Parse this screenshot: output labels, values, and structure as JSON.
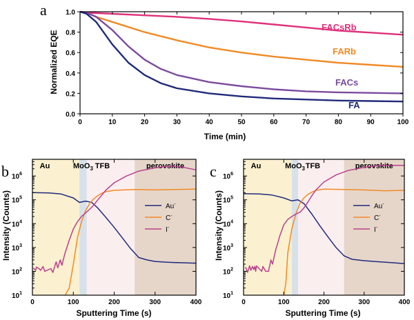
{
  "chart_data": [
    {
      "panel": "a",
      "type": "line",
      "xlabel": "Time (min)",
      "ylabel": "Normalized EQE",
      "xlim": [
        0,
        100
      ],
      "ylim": [
        0.0,
        1.0
      ],
      "xticks": [
        "0",
        "10",
        "20",
        "30",
        "40",
        "50",
        "60",
        "70",
        "80",
        "90",
        "100"
      ],
      "yticks": [
        "0.0",
        "0.2",
        "0.4",
        "0.6",
        "0.8",
        "1.0"
      ],
      "series": [
        {
          "name": "FACsRb",
          "color": "#e0307a",
          "x": [
            0,
            3,
            10,
            20,
            30,
            40,
            50,
            60,
            70,
            80,
            90,
            100
          ],
          "y": [
            1.0,
            0.99,
            0.98,
            0.965,
            0.95,
            0.93,
            0.905,
            0.875,
            0.845,
            0.815,
            0.795,
            0.775
          ]
        },
        {
          "name": "FARb",
          "color": "#f08a24",
          "x": [
            0,
            2,
            5,
            10,
            15,
            20,
            30,
            40,
            50,
            60,
            70,
            80,
            90,
            100
          ],
          "y": [
            1.0,
            0.99,
            0.95,
            0.9,
            0.85,
            0.8,
            0.72,
            0.65,
            0.6,
            0.56,
            0.53,
            0.5,
            0.48,
            0.46
          ]
        },
        {
          "name": "FACs",
          "color": "#7b4b9e",
          "x": [
            0,
            2,
            5,
            10,
            15,
            20,
            25,
            30,
            40,
            50,
            60,
            70,
            80,
            90,
            100
          ],
          "y": [
            1.0,
            0.99,
            0.95,
            0.82,
            0.66,
            0.53,
            0.44,
            0.38,
            0.31,
            0.27,
            0.24,
            0.22,
            0.21,
            0.205,
            0.2
          ]
        },
        {
          "name": "FA",
          "color": "#1f2a7a",
          "x": [
            0,
            2,
            5,
            10,
            15,
            20,
            25,
            30,
            40,
            50,
            60,
            70,
            80,
            90,
            100
          ],
          "y": [
            1.0,
            0.98,
            0.9,
            0.68,
            0.5,
            0.38,
            0.3,
            0.25,
            0.2,
            0.17,
            0.15,
            0.14,
            0.13,
            0.125,
            0.12
          ]
        }
      ]
    },
    {
      "panel": "b",
      "type": "line",
      "yscale": "log",
      "xlabel": "Sputtering Time (s)",
      "ylabel": "Intensity (Counts)",
      "xlim": [
        0,
        400
      ],
      "ylim": [
        10,
        5000000
      ],
      "xticks": [
        "0",
        "100",
        "200",
        "300",
        "400"
      ],
      "regions": [
        {
          "label": "Au",
          "from": 0,
          "to": 115,
          "color": "#fbf0cf"
        },
        {
          "label": "MoO3",
          "from": 115,
          "to": 133,
          "color": "#d7e1ea"
        },
        {
          "label": "TFB",
          "from": 133,
          "to": 250,
          "color": "#fbeeee"
        },
        {
          "label": "perovskite",
          "from": 250,
          "to": 400,
          "color": "#e6d6ca"
        }
      ],
      "legend": [
        "Au-",
        "C-",
        "I-"
      ],
      "series": [
        {
          "name": "Au-",
          "color": "#1f2a7a",
          "x": [
            0,
            40,
            70,
            100,
            115,
            130,
            145,
            160,
            180,
            200,
            220,
            240,
            260,
            280,
            300,
            330,
            360,
            400
          ],
          "y": [
            200000,
            195000,
            175000,
            120000,
            78000,
            88000,
            78000,
            45000,
            18000,
            7000,
            2500,
            900,
            380,
            300,
            260,
            240,
            230,
            220
          ]
        },
        {
          "name": "C-",
          "color": "#f08a24",
          "x": [
            80,
            90,
            100,
            110,
            120,
            130,
            140,
            150,
            160,
            170,
            180,
            200,
            250,
            300,
            350,
            400
          ],
          "y": [
            10,
            20,
            200,
            2500,
            12000,
            35000,
            70000,
            110000,
            150000,
            190000,
            220000,
            250000,
            270000,
            260000,
            270000,
            280000
          ]
        },
        {
          "name": "I-",
          "color": "#b8408f",
          "x": [
            2,
            8,
            10,
            16,
            20,
            26,
            30,
            45,
            50,
            58,
            62,
            68,
            72,
            80,
            90,
            100,
            110,
            120,
            130,
            140,
            150,
            160,
            170,
            180,
            200,
            230,
            260,
            300,
            340,
            370,
            400
          ],
          "y": [
            140,
            110,
            150,
            130,
            110,
            160,
            100,
            130,
            90,
            250,
            140,
            300,
            180,
            600,
            2000,
            6000,
            12000,
            20000,
            28000,
            40000,
            60000,
            100000,
            160000,
            260000,
            520000,
            1000000,
            1600000,
            2200000,
            2600000,
            2300000,
            1800000
          ]
        }
      ]
    },
    {
      "panel": "c",
      "type": "line",
      "yscale": "log",
      "xlabel": "Sputtering Time (s)",
      "ylabel": "Intensity (Counts)",
      "xlim": [
        0,
        400
      ],
      "ylim": [
        10,
        5000000
      ],
      "xticks": [
        "0",
        "100",
        "200",
        "300",
        "400"
      ],
      "regions": [
        {
          "label": "Au",
          "from": 0,
          "to": 120,
          "color": "#fbf0cf"
        },
        {
          "label": "MoO3",
          "from": 120,
          "to": 136,
          "color": "#d7e1ea"
        },
        {
          "label": "TFB",
          "from": 136,
          "to": 250,
          "color": "#fbeeee"
        },
        {
          "label": "perovskite",
          "from": 250,
          "to": 400,
          "color": "#e6d6ca"
        }
      ],
      "legend": [
        "Au-",
        "C-",
        "I-"
      ],
      "series": [
        {
          "name": "Au-",
          "color": "#1f2a7a",
          "x": [
            0,
            40,
            70,
            100,
            120,
            135,
            150,
            170,
            190,
            210,
            230,
            250,
            270,
            300,
            340,
            370,
            400
          ],
          "y": [
            180000,
            175000,
            160000,
            120000,
            90000,
            100000,
            70000,
            25000,
            8000,
            2800,
            1000,
            450,
            320,
            280,
            250,
            230,
            210
          ]
        },
        {
          "name": "C-",
          "color": "#f08a24",
          "x": [
            100,
            105,
            110,
            120,
            130,
            140,
            150,
            160,
            170,
            180,
            200,
            250,
            300,
            350,
            400
          ],
          "y": [
            10,
            30,
            600,
            6000,
            25000,
            70000,
            120000,
            170000,
            210000,
            250000,
            280000,
            270000,
            260000,
            240000,
            250000
          ]
        },
        {
          "name": "I-",
          "color": "#b8408f",
          "x": [
            5,
            10,
            15,
            18,
            22,
            25,
            28,
            30,
            32,
            45,
            48,
            55,
            62,
            68,
            72,
            80,
            90,
            100,
            110,
            120,
            130,
            140,
            150,
            160,
            170,
            180,
            200,
            230,
            260,
            300,
            330,
            360,
            400
          ],
          "y": [
            150,
            90,
            170,
            110,
            160,
            120,
            160,
            100,
            170,
            100,
            160,
            100,
            100,
            300,
            200,
            800,
            3000,
            9000,
            15000,
            20000,
            25000,
            30000,
            45000,
            80000,
            150000,
            260000,
            560000,
            1100000,
            1700000,
            2300000,
            2700000,
            2800000,
            2800000
          ]
        }
      ]
    }
  ]
}
